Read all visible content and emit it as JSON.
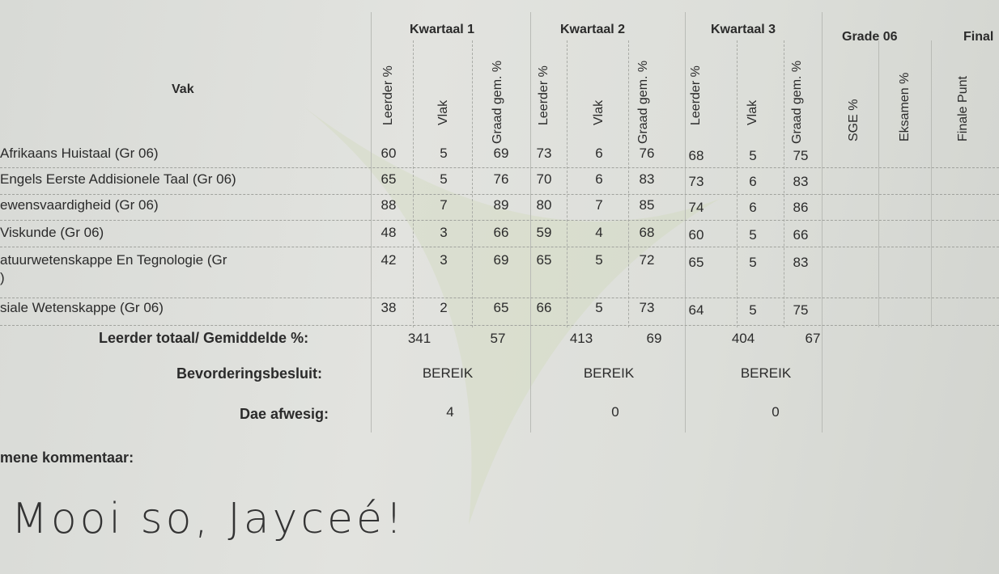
{
  "header": {
    "vak_label": "Vak",
    "groups": [
      "Kwartaal 1",
      "Kwartaal 2",
      "Kwartaal 3",
      "Grade 06",
      "Final"
    ],
    "columns": [
      "Leerder %",
      "Vlak",
      "Graad gem. %",
      "Leerder %",
      "Vlak",
      "Graad gem. %",
      "Leerder %",
      "Vlak",
      "Graad gem. %",
      "SGE %",
      "Eksamen %",
      "Finale Punt"
    ]
  },
  "rows": [
    {
      "subject": "Afrikaans Huistaal (Gr 06)",
      "subject_line2": "",
      "values": [
        "60",
        "5",
        "69",
        "73",
        "6",
        "76",
        "68",
        "5",
        "75"
      ]
    },
    {
      "subject": "Engels Eerste Addisionele Taal (Gr 06)",
      "subject_line2": "",
      "values": [
        "65",
        "5",
        "76",
        "70",
        "6",
        "83",
        "73",
        "6",
        "83"
      ]
    },
    {
      "subject": "ewensvaardigheid (Gr 06)",
      "subject_line2": "",
      "values": [
        "88",
        "7",
        "89",
        "80",
        "7",
        "85",
        "74",
        "6",
        "86"
      ]
    },
    {
      "subject": "Viskunde (Gr 06)",
      "subject_line2": "",
      "values": [
        "48",
        "3",
        "66",
        "59",
        "4",
        "68",
        "60",
        "5",
        "66"
      ]
    },
    {
      "subject": "atuurwetenskappe En Tegnologie (Gr",
      "subject_line2": ")",
      "values": [
        "42",
        "3",
        "69",
        "65",
        "5",
        "72",
        "65",
        "5",
        "83"
      ]
    },
    {
      "subject": "siale Wetenskappe (Gr 06)",
      "subject_line2": "",
      "values": [
        "38",
        "2",
        "65",
        "66",
        "5",
        "73",
        "64",
        "5",
        "75"
      ]
    }
  ],
  "totals": {
    "label": "Leerder totaal/ Gemiddelde %:",
    "values": [
      "341",
      "57",
      "413",
      "69",
      "404",
      "67"
    ]
  },
  "promotion": {
    "label": "Bevorderingsbesluit:",
    "values": [
      "BEREIK",
      "BEREIK",
      "BEREIK"
    ]
  },
  "absent": {
    "label": "Dae afwesig:",
    "values": [
      "4",
      "0",
      "0"
    ]
  },
  "comment": {
    "label": "mene kommentaar:",
    "handwritten": "Mooi so, Jayceé!"
  },
  "colors": {
    "paper": "#dcded9",
    "ink": "#2b2b2b",
    "watermark": "#c9d6a8"
  }
}
